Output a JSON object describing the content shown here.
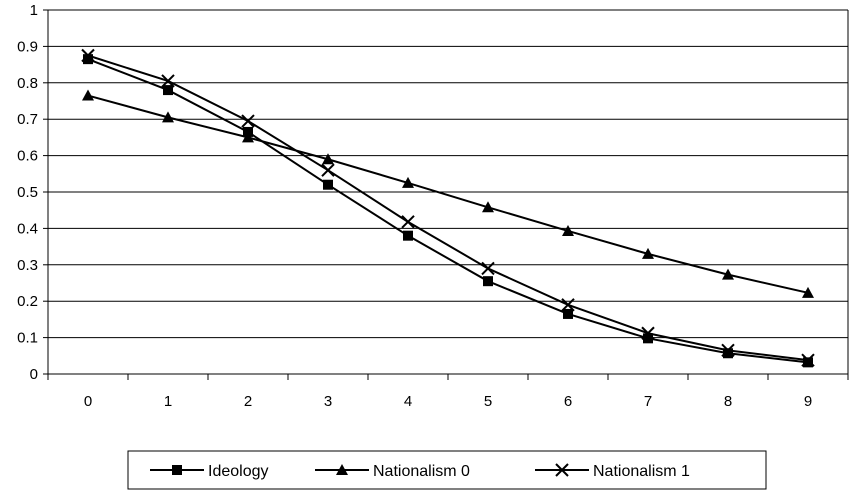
{
  "chart_data": {
    "type": "line",
    "x": [
      0,
      1,
      2,
      3,
      4,
      5,
      6,
      7,
      8,
      9
    ],
    "xlim": [
      0,
      9
    ],
    "ylim": [
      0,
      1
    ],
    "yticks": [
      "0",
      "0.1",
      "0.2",
      "0.3",
      "0.4",
      "0.5",
      "0.6",
      "0.7",
      "0.8",
      "0.9",
      "1"
    ],
    "xticks": [
      "0",
      "1",
      "2",
      "3",
      "4",
      "5",
      "6",
      "7",
      "8",
      "9"
    ],
    "grid": "horizontal",
    "legend_position": "bottom",
    "colors": {
      "line": "#000000",
      "grid": "#000000"
    },
    "series": [
      {
        "name": "Ideology",
        "marker": "square",
        "values": [
          0.865,
          0.78,
          0.665,
          0.52,
          0.38,
          0.255,
          0.165,
          0.098,
          0.057,
          0.032
        ]
      },
      {
        "name": "Nationalism 0",
        "marker": "triangle",
        "values": [
          0.765,
          0.705,
          0.65,
          0.59,
          0.525,
          0.458,
          0.393,
          0.33,
          0.273,
          0.223
        ]
      },
      {
        "name": "Nationalism 1",
        "marker": "x",
        "values": [
          0.875,
          0.805,
          0.695,
          0.56,
          0.418,
          0.29,
          0.19,
          0.112,
          0.065,
          0.038
        ]
      }
    ]
  }
}
